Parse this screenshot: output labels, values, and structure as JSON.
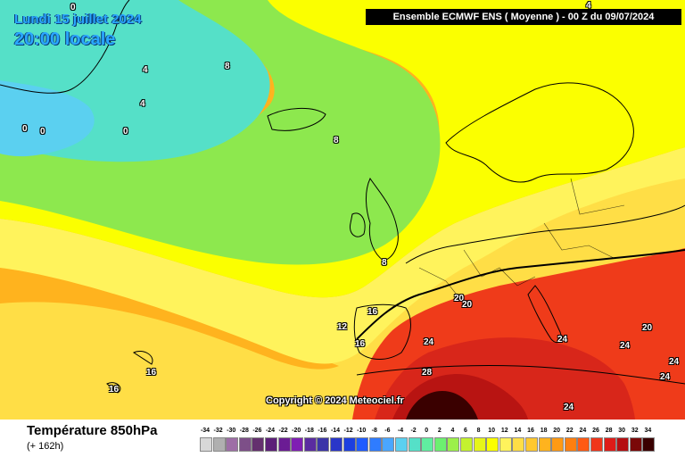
{
  "header": {
    "date_line": "Lundi 15 juillet 2024",
    "time_line": "20:00 locale",
    "model_banner": "Ensemble ECMWF ENS  ( Moyenne )  -  00 Z du 09/07/2024"
  },
  "copyright": "Copyright © 2024 Meteociel.fr",
  "footer": {
    "variable": "Température 850hPa",
    "lead_time": "(+ 162h)"
  },
  "contour_labels": [
    "0",
    "0",
    "0",
    "0",
    "4",
    "4",
    "4",
    "8",
    "8",
    "8",
    "12",
    "16",
    "16",
    "16",
    "16",
    "20",
    "20",
    "20",
    "24",
    "24",
    "24",
    "24",
    "24",
    "24",
    "28"
  ],
  "legend": {
    "ticks": [
      "-34",
      "-32",
      "-30",
      "-28",
      "-26",
      "-24",
      "-22",
      "-20",
      "-18",
      "-16",
      "-14",
      "-12",
      "-10",
      "-8",
      "-6",
      "-4",
      "-2",
      "0",
      "2",
      "4",
      "6",
      "8",
      "10",
      "12",
      "14",
      "16",
      "18",
      "20",
      "22",
      "24",
      "26",
      "28",
      "30",
      "32",
      "34"
    ],
    "colors": [
      "#d8d8d8",
      "#b0b0b0",
      "#9e6fa6",
      "#7d4f88",
      "#64306e",
      "#5c1f78",
      "#6b1c94",
      "#7f1fb3",
      "#5a2ca0",
      "#3b34a8",
      "#2a36c8",
      "#1d3fe0",
      "#1f5bff",
      "#2f7cff",
      "#4aa6ff",
      "#5bd0f0",
      "#55e0c8",
      "#60eea0",
      "#6cf070",
      "#9cf04a",
      "#c4f22f",
      "#e6f51a",
      "#fbff00",
      "#fff35c",
      "#ffde46",
      "#ffc82f",
      "#ffb31e",
      "#ff9a14",
      "#ff7f0f",
      "#ff5a14",
      "#f0361a",
      "#de1c18",
      "#b50f12",
      "#7a0808",
      "#3a0000"
    ]
  },
  "palette": {
    "t_m4": "#4aa6ff",
    "t_0": "#5bd0f0",
    "t_4": "#55e0c8",
    "t_8": "#8de84e",
    "t_10": "#c4f22f",
    "t_12": "#fbff00",
    "t_14": "#fff35c",
    "t_16": "#ffde46",
    "t_18": "#ffb31e",
    "t_20": "#ff9a14",
    "t_22": "#ff5a14",
    "t_24": "#ef3b1a",
    "t_26": "#d8261a",
    "t_28": "#b81412",
    "t_30": "#7a0808",
    "t_32": "#3a0000",
    "coast": "#000000",
    "border": "#000000"
  }
}
